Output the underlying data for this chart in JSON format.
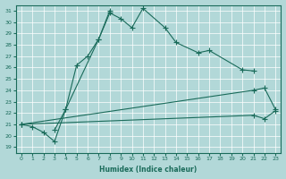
{
  "xlabel": "Humidex (Indice chaleur)",
  "xlim": [
    -0.5,
    23.5
  ],
  "ylim": [
    18.5,
    31.5
  ],
  "xticks": [
    0,
    1,
    2,
    3,
    4,
    5,
    6,
    7,
    8,
    9,
    10,
    11,
    12,
    13,
    14,
    15,
    16,
    17,
    18,
    19,
    20,
    21,
    22,
    23
  ],
  "yticks": [
    19,
    20,
    21,
    22,
    23,
    24,
    25,
    26,
    27,
    28,
    29,
    30,
    31
  ],
  "bg_color": "#b2d8d8",
  "line_color": "#1a6b5a",
  "grid_color": "#c8e0e0",
  "series": [
    {
      "x": [
        0,
        1,
        2,
        3,
        4,
        5,
        6,
        7,
        8,
        9,
        10,
        11,
        13,
        14,
        16,
        17,
        20,
        21
      ],
      "y": [
        21.0,
        20.8,
        20.3,
        19.5,
        22.3,
        26.2,
        27.0,
        28.5,
        30.8,
        30.3,
        29.5,
        31.2,
        29.5,
        28.2,
        27.3,
        27.5,
        25.8,
        25.7
      ]
    },
    {
      "x": [
        3,
        4,
        7,
        8
      ],
      "y": [
        20.5,
        22.3,
        28.5,
        31.0
      ]
    },
    {
      "x": [
        0,
        23
      ],
      "y": [
        21.0,
        24.2
      ]
    },
    {
      "x": [
        0,
        23
      ],
      "y": [
        21.0,
        22.2
      ]
    }
  ],
  "series_with_markers": [
    {
      "x": [
        0,
        1,
        2,
        3,
        4,
        5,
        6,
        7,
        8,
        9,
        10,
        11,
        13,
        14,
        16,
        17,
        20,
        21
      ],
      "y": [
        21.0,
        20.8,
        20.3,
        19.5,
        22.3,
        26.2,
        27.0,
        28.5,
        30.8,
        30.3,
        29.5,
        31.2,
        29.5,
        28.2,
        27.3,
        27.5,
        25.8,
        25.7
      ]
    },
    {
      "x": [
        3,
        4,
        7,
        8
      ],
      "y": [
        20.5,
        22.3,
        28.5,
        31.0
      ]
    },
    {
      "x": [
        0,
        21,
        22,
        23
      ],
      "y": [
        21.0,
        24.0,
        24.2,
        22.3
      ]
    },
    {
      "x": [
        0,
        21,
        22,
        23
      ],
      "y": [
        21.0,
        21.8,
        21.5,
        22.2
      ]
    }
  ]
}
